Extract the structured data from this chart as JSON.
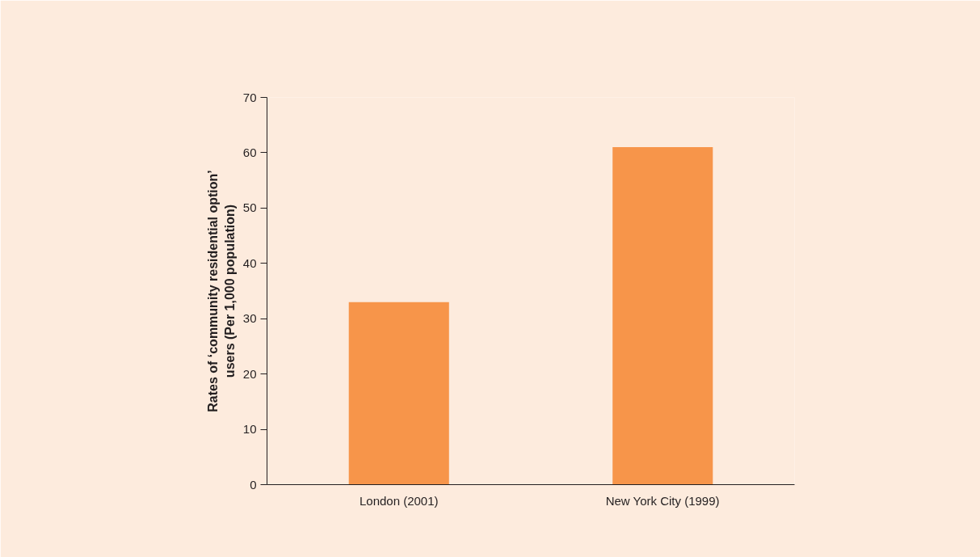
{
  "chart_data": {
    "type": "bar",
    "ylabel": "Rates of ‘community residential option’\nusers (Per 1,000 population)",
    "categories": [
      "London (2001)",
      "New York City (1999)"
    ],
    "values": [
      33,
      61
    ],
    "color": "#f7954a",
    "ylim": [
      0,
      70
    ],
    "yticks": [
      0,
      10,
      20,
      30,
      40,
      50,
      60,
      70
    ],
    "grid": false
  }
}
